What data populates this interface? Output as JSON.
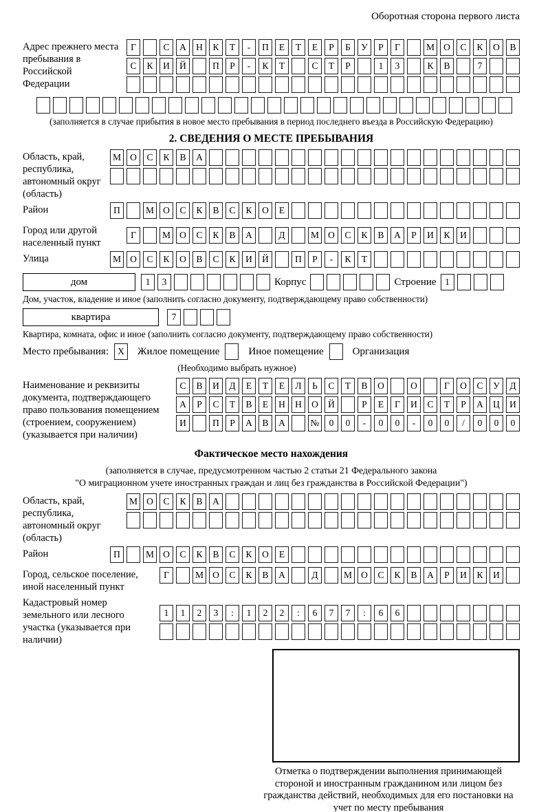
{
  "header": {
    "note": "Оборотная сторона первого листа"
  },
  "prev_address": {
    "label": "Адрес прежнего места пребывания в Российской Федерации",
    "rows": [
      {
        "text": "Г САНКТ-ПЕТЕРБУРГ МОСКОВ",
        "cells": 24
      },
      {
        "text": "СКИЙ ПР-КТ СТР 13 КВ 7",
        "cells": 24
      },
      {
        "text": "",
        "cells": 24
      },
      {
        "text": "",
        "cells": 29
      }
    ],
    "caption": "(заполняется в случае прибытия в новое место пребывания в период последнего въезда в Российскую Федерацию)"
  },
  "section2": {
    "title": "2. СВЕДЕНИЯ О МЕСТЕ ПРЕБЫВАНИЯ",
    "region": {
      "label": "Область, край, республика, автономный округ (область)",
      "rows": [
        {
          "text": "МОСКВА",
          "cells": 25
        },
        {
          "text": "",
          "cells": 25
        }
      ]
    },
    "district": {
      "label": "Район",
      "row": {
        "text": "П МОСКВСКОЕ",
        "cells": 25
      }
    },
    "city": {
      "label": "Город или другой населенный пункт",
      "row": {
        "text": "Г МОСКВА Д МОСКВАРИКИ",
        "cells": 24
      }
    },
    "street": {
      "label": "Улица",
      "row": {
        "text": "МОСКОВСКИЙ ПР-КТ",
        "cells": 25
      }
    },
    "house": {
      "box_label": "дом",
      "number": {
        "text": "13",
        "cells": 8
      },
      "korpus_label": "Корпус",
      "korpus": {
        "text": "",
        "cells": 5
      },
      "stroenie_label": "Строение",
      "stroenie": {
        "text": "1",
        "cells": 4
      }
    },
    "house_caption": "Дом, участок, владение и иное (заполнить согласно документу, подтверждающему право собственности)",
    "apartment": {
      "box_label": "квартира",
      "number": {
        "text": "7",
        "cells": 4
      }
    },
    "apartment_caption": "Квартира, комната, офис и иное (заполнить согласно документу, подтверждающему право собственности)",
    "stay_type": {
      "label": "Место пребывания:",
      "options": [
        {
          "mark": "X",
          "label": "Жилое помещение"
        },
        {
          "mark": "",
          "label": "Иное помещение"
        },
        {
          "mark": "",
          "label": "Организация"
        }
      ],
      "caption": "(Необходимо выбрать нужное)"
    },
    "document": {
      "label": "Наименование и реквизиты документа, подтверждающего право пользования помещением (строением, сооружением) (указывается при наличии)",
      "rows": [
        {
          "text": "СВИДЕТЕЛЬСТВО О ГОСУД",
          "cells": 21
        },
        {
          "text": "АРСТВЕННОЙ РЕГИСТРАЦИ",
          "cells": 21
        },
        {
          "text": "И ПРАВА №00-00-00/000",
          "cells": 21
        }
      ]
    }
  },
  "actual_location": {
    "title": "Фактическое место нахождения",
    "note_line1": "(заполняется в случае, предусмотренном частью 2 статьи 21 Федерального закона",
    "note_line2": "\"О миграционном учете иностранных граждан и лиц без гражданства в Российской Федерации\")",
    "region": {
      "label": "Область, край, республика, автономный округ (область)",
      "rows": [
        {
          "text": "МОСКВА",
          "cells": 24
        },
        {
          "text": "",
          "cells": 24
        }
      ]
    },
    "district": {
      "label": "Район",
      "row": {
        "text": "П МОСКВСКОЕ",
        "cells": 25
      }
    },
    "city": {
      "label": "Город, сельское поселение, иной населенный пункт",
      "row": {
        "text": "Г МОСКВА Д МОСКВАРИКИ",
        "cells": 22
      }
    },
    "cadastral": {
      "label": "Кадастровый номер земельного или лесного участка (указывается при наличии)",
      "rows": [
        {
          "text": "1123:122:677:66",
          "cells": 22
        },
        {
          "text": "",
          "cells": 22
        }
      ]
    },
    "stamp_caption": "Отметка о подтверждении выполнения принимающей стороной и иностранным гражданином или лицом без гражданства действий, необходимых для его постановки на учет по месту пребывания"
  }
}
